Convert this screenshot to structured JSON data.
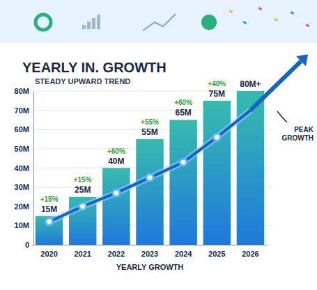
{
  "chart_data": {
    "type": "bar",
    "title": "YEARLY IN. GROWTH",
    "subtitle": "STEADY UPWARD TREND",
    "x_label": "YEARLY GROWTH",
    "categories": [
      "2020",
      "2021",
      "2022",
      "2023",
      "2024",
      "2025",
      "2026"
    ],
    "series": [
      {
        "type": "bar",
        "color": "#1f78dc",
        "values": [
          15,
          25,
          40,
          55,
          65,
          75,
          80
        ],
        "value_labels": [
          "15M",
          "25M",
          "40M",
          "55M",
          "65M",
          "75M",
          "80M+"
        ]
      },
      {
        "type": "line",
        "color": "#1565c0",
        "marker": "circle",
        "values": [
          12,
          20,
          27,
          35,
          43,
          56,
          70
        ]
      }
    ],
    "annotations": [
      "+15%",
      "+15%",
      "+60%",
      "+55%",
      "+60%",
      "+40%",
      null
    ],
    "note": "PEAK GROWTH",
    "ylim": [
      0,
      80
    ],
    "yticks": [
      0,
      {
        "value": 10,
        "label": "10M"
      },
      {
        "value": 20,
        "label": "20M"
      },
      {
        "value": 30,
        "label": "30M"
      },
      {
        "value": 40,
        "label": "40M"
      },
      {
        "value": 50,
        "label": "50M"
      },
      {
        "value": 60,
        "label": "60M"
      },
      {
        "value": 70,
        "label": "70M"
      },
      {
        "value": 80,
        "label": "80M"
      }
    ],
    "grid": true,
    "data_labels": true
  }
}
